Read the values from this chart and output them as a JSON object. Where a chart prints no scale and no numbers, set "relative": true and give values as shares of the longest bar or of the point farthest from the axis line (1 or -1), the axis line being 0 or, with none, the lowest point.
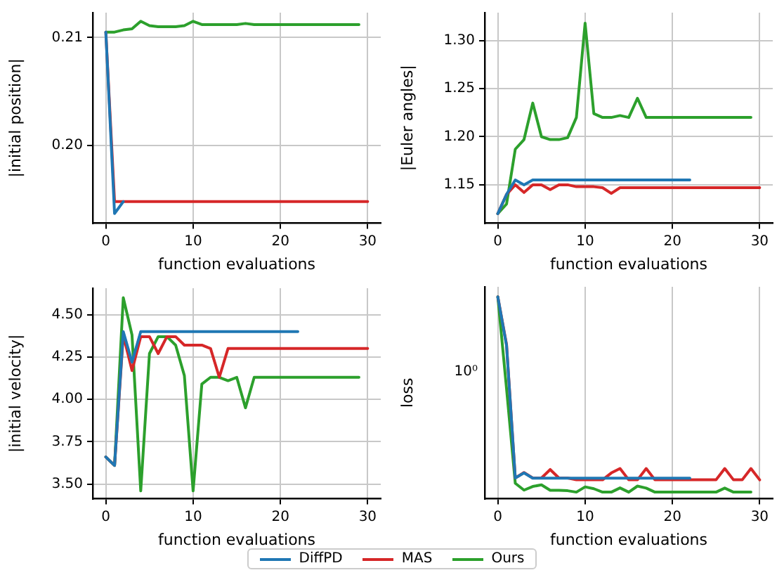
{
  "chart_data": [
    {
      "type": "line",
      "xlabel": "function evaluations",
      "ylabel": "|initial position|",
      "x": [
        0,
        1,
        2,
        3,
        4,
        5,
        6,
        7,
        8,
        9,
        10,
        11,
        12,
        13,
        14,
        15,
        16,
        17,
        18,
        19,
        20,
        21,
        22,
        23,
        24,
        25,
        26,
        27,
        28,
        29,
        30
      ],
      "xlim": [
        -1.5,
        31.5
      ],
      "xticks": [
        0,
        10,
        20,
        30
      ],
      "ylim": [
        0.1928,
        0.2123
      ],
      "yticks": [
        {
          "value": 0.2,
          "label": "0.20"
        },
        0.21
      ],
      "grid": true,
      "marker": "none",
      "line_style": "solid",
      "legend": "bottom",
      "series": [
        {
          "name": "DiffPD",
          "color": "#1f77b4",
          "values": [
            0.2105,
            0.1937,
            0.1948,
            null,
            null,
            null,
            null,
            null,
            null,
            null,
            null,
            null,
            null,
            null,
            null,
            null,
            null,
            null,
            null,
            null,
            null,
            null,
            null,
            null,
            null,
            null,
            null,
            null,
            null,
            null,
            null
          ]
        },
        {
          "name": "MAS",
          "color": "#d62728",
          "values": [
            0.2105,
            0.1948,
            0.1948,
            0.1948,
            0.1948,
            0.1948,
            0.1948,
            0.1948,
            0.1948,
            0.1948,
            0.1948,
            0.1948,
            0.1948,
            0.1948,
            0.1948,
            0.1948,
            0.1948,
            0.1948,
            0.1948,
            0.1948,
            0.1948,
            0.1948,
            0.1948,
            0.1948,
            0.1948,
            0.1948,
            0.1948,
            0.1948,
            0.1948,
            0.1948,
            0.1948
          ]
        },
        {
          "name": "Ours",
          "color": "#2ca02c",
          "values": [
            0.2105,
            0.2105,
            0.2107,
            0.2108,
            0.2115,
            0.2111,
            0.211,
            0.211,
            0.211,
            0.2111,
            0.2115,
            0.2112,
            0.2112,
            0.2112,
            0.2112,
            0.2112,
            0.2113,
            0.2112,
            0.2112,
            0.2112,
            0.2112,
            0.2112,
            0.2112,
            0.2112,
            0.2112,
            0.2112,
            0.2112,
            0.2112,
            0.2112,
            0.2112,
            null
          ]
        }
      ]
    },
    {
      "type": "line",
      "xlabel": "function evaluations",
      "ylabel": "|Euler angles|",
      "x": [
        0,
        1,
        2,
        3,
        4,
        5,
        6,
        7,
        8,
        9,
        10,
        11,
        12,
        13,
        14,
        15,
        16,
        17,
        18,
        19,
        20,
        21,
        22,
        23,
        24,
        25,
        26,
        27,
        28,
        29,
        30
      ],
      "xlim": [
        -1.5,
        31.5
      ],
      "xticks": [
        0,
        10,
        20,
        30
      ],
      "ylim": [
        1.11,
        1.329
      ],
      "yticks": [
        1.15,
        {
          "value": 1.2,
          "label": "1.20"
        },
        1.25,
        {
          "value": 1.3,
          "label": "1.30"
        }
      ],
      "grid": true,
      "marker": "none",
      "line_style": "solid",
      "series": [
        {
          "color": "#1f77b4",
          "values": [
            1.12,
            1.14,
            1.155,
            1.15,
            1.155,
            1.155,
            1.155,
            1.155,
            1.155,
            1.155,
            1.155,
            1.155,
            1.155,
            1.155,
            1.155,
            1.155,
            1.155,
            1.155,
            1.155,
            1.155,
            1.155,
            1.155,
            1.155,
            null,
            null,
            null,
            null,
            null,
            null,
            null,
            null
          ]
        },
        {
          "color": "#d62728",
          "values": [
            1.12,
            1.14,
            1.15,
            1.142,
            1.15,
            1.15,
            1.145,
            1.15,
            1.15,
            1.148,
            1.148,
            1.148,
            1.147,
            1.141,
            1.147,
            1.147,
            1.147,
            1.147,
            1.147,
            1.147,
            1.147,
            1.147,
            1.147,
            1.147,
            1.147,
            1.147,
            1.147,
            1.147,
            1.147,
            1.147,
            1.147
          ]
        },
        {
          "color": "#2ca02c",
          "values": [
            1.12,
            1.13,
            1.187,
            1.197,
            1.235,
            1.2,
            1.197,
            1.197,
            1.199,
            1.22,
            1.318,
            1.224,
            1.22,
            1.22,
            1.222,
            1.22,
            1.24,
            1.22,
            1.22,
            1.22,
            1.22,
            1.22,
            1.22,
            1.22,
            1.22,
            1.22,
            1.22,
            1.22,
            1.22,
            1.22,
            null
          ]
        }
      ]
    },
    {
      "type": "line",
      "xlabel": "function evaluations",
      "ylabel": "|initial velocity|",
      "x": [
        0,
        1,
        2,
        3,
        4,
        5,
        6,
        7,
        8,
        9,
        10,
        11,
        12,
        13,
        14,
        15,
        16,
        17,
        18,
        19,
        20,
        21,
        22,
        23,
        24,
        25,
        26,
        27,
        28,
        29,
        30
      ],
      "xlim": [
        -1.5,
        31.5
      ],
      "xticks": [
        0,
        10,
        20,
        30
      ],
      "ylim": [
        3.413,
        4.656
      ],
      "yticks": [
        {
          "value": 3.5,
          "label": "3.50"
        },
        3.75,
        {
          "value": 4,
          "label": "4.00"
        },
        4.25,
        {
          "value": 4.5,
          "label": "4.50"
        }
      ],
      "grid": true,
      "marker": "none",
      "line_style": "solid",
      "series": [
        {
          "color": "#1f77b4",
          "values": [
            3.66,
            3.61,
            4.4,
            4.22,
            4.4,
            4.4,
            4.4,
            4.4,
            4.4,
            4.4,
            4.4,
            4.4,
            4.4,
            4.4,
            4.4,
            4.4,
            4.4,
            4.4,
            4.4,
            4.4,
            4.4,
            4.4,
            4.4,
            null,
            null,
            null,
            null,
            null,
            null,
            null,
            null
          ]
        },
        {
          "color": "#d62728",
          "values": [
            3.66,
            3.61,
            4.38,
            4.17,
            4.37,
            4.37,
            4.27,
            4.37,
            4.37,
            4.32,
            4.32,
            4.32,
            4.3,
            4.13,
            4.3,
            4.3,
            4.3,
            4.3,
            4.3,
            4.3,
            4.3,
            4.3,
            4.3,
            4.3,
            4.3,
            4.3,
            4.3,
            4.3,
            4.3,
            4.3,
            4.3
          ]
        },
        {
          "color": "#2ca02c",
          "values": [
            3.66,
            3.61,
            4.6,
            4.38,
            3.46,
            4.27,
            4.37,
            4.37,
            4.32,
            4.14,
            3.46,
            4.09,
            4.13,
            4.13,
            4.11,
            4.13,
            3.95,
            4.13,
            4.13,
            4.13,
            4.13,
            4.13,
            4.13,
            4.13,
            4.13,
            4.13,
            4.13,
            4.13,
            4.13,
            4.13,
            null
          ]
        }
      ]
    },
    {
      "type": "line",
      "xlabel": "function evaluations",
      "ylabel": "loss",
      "annotations": [
        "10⁰"
      ],
      "x": [
        0,
        1,
        2,
        3,
        4,
        5,
        6,
        7,
        8,
        9,
        10,
        11,
        12,
        13,
        14,
        15,
        16,
        17,
        18,
        19,
        20,
        21,
        22,
        23,
        24,
        25,
        26,
        27,
        28,
        29,
        30
      ],
      "xlim": [
        -1.5,
        31.5
      ],
      "xticks": [
        0,
        10,
        20,
        30
      ],
      "relative": true,
      "grid": "x",
      "marker": "none",
      "line_style": "solid",
      "series": [
        {
          "color": "#1f77b4",
          "values": [
            1,
            0.759,
            0.103,
            0.128,
            0.102,
            0.102,
            0.102,
            0.102,
            0.102,
            0.102,
            0.102,
            0.102,
            0.102,
            0.102,
            0.102,
            0.102,
            0.102,
            0.102,
            0.102,
            0.102,
            0.102,
            0.102,
            0.102,
            null,
            null,
            null,
            null,
            null,
            null,
            null,
            null
          ]
        },
        {
          "color": "#d62728",
          "values": [
            1,
            0.764,
            0.103,
            0.13,
            0.103,
            0.103,
            0.145,
            0.103,
            0.103,
            0.094,
            0.094,
            0.094,
            0.094,
            0.128,
            0.15,
            0.094,
            0.094,
            0.15,
            0.094,
            0.094,
            0.094,
            0.094,
            0.094,
            0.094,
            0.094,
            0.094,
            0.15,
            0.094,
            0.094,
            0.15,
            0.094
          ]
        },
        {
          "color": "#2ca02c",
          "values": [
            1,
            0.545,
            0.077,
            0.043,
            0.061,
            0.069,
            0.042,
            0.042,
            0.04,
            0.033,
            0.059,
            0.05,
            0.033,
            0.033,
            0.054,
            0.033,
            0.063,
            0.053,
            0.033,
            0.033,
            0.033,
            0.033,
            0.033,
            0.033,
            0.033,
            0.033,
            0.053,
            0.033,
            0.033,
            0.033,
            null
          ]
        }
      ]
    }
  ]
}
